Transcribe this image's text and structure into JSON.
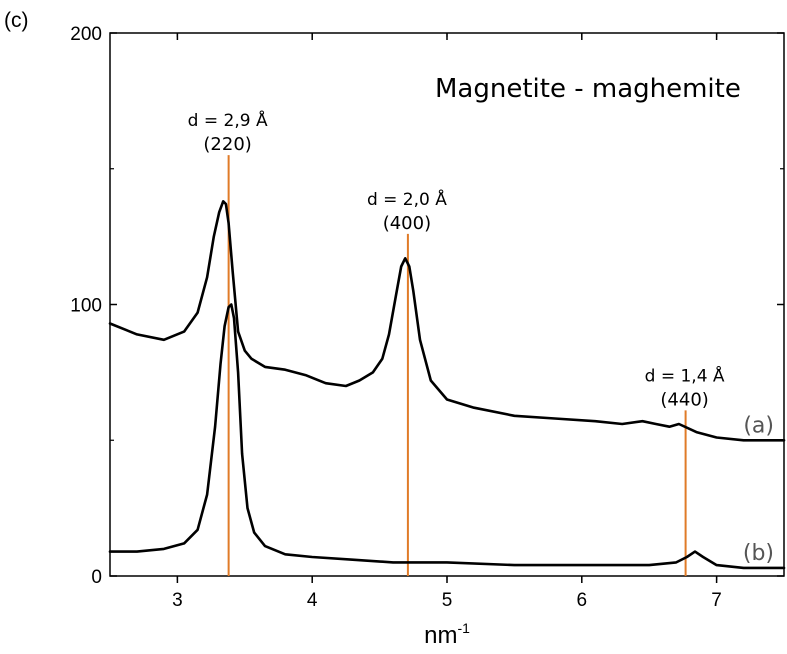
{
  "chart_data": {
    "type": "line",
    "panel_label": "(c)",
    "title": "Magnetite - maghemite",
    "xlabel": "nm",
    "xlabel_sup": "-1",
    "ylabel": "",
    "xlim": [
      2.5,
      7.5
    ],
    "ylim": [
      0,
      200
    ],
    "x_ticks": [
      3,
      4,
      5,
      6,
      7
    ],
    "x_tick_labels": [
      "3",
      "4",
      "5",
      "6",
      "7"
    ],
    "y_ticks": [
      0,
      100,
      200
    ],
    "y_tick_labels": [
      "0",
      "100",
      "200"
    ],
    "grid": false,
    "colors": {
      "curve": "#000000",
      "marker_line": "#e07b28"
    },
    "series": [
      {
        "name": "(a)",
        "x": [
          2.5,
          2.7,
          2.9,
          3.05,
          3.15,
          3.22,
          3.27,
          3.31,
          3.34,
          3.36,
          3.38,
          3.41,
          3.45,
          3.5,
          3.55,
          3.65,
          3.8,
          3.95,
          4.1,
          4.25,
          4.35,
          4.45,
          4.52,
          4.57,
          4.62,
          4.66,
          4.69,
          4.72,
          4.75,
          4.8,
          4.88,
          5.0,
          5.2,
          5.5,
          5.8,
          6.1,
          6.3,
          6.45,
          6.55,
          6.65,
          6.72,
          6.85,
          7.0,
          7.2,
          7.5
        ],
        "y": [
          93,
          89,
          87,
          90,
          97,
          110,
          125,
          134,
          138,
          137,
          130,
          112,
          90,
          83,
          80,
          77,
          76,
          74,
          71,
          70,
          72,
          75,
          80,
          89,
          103,
          114,
          117,
          114,
          105,
          87,
          72,
          65,
          62,
          59,
          58,
          57,
          56,
          57,
          56,
          55,
          56,
          53,
          51,
          50,
          50
        ]
      },
      {
        "name": "(b)",
        "x": [
          2.5,
          2.7,
          2.9,
          3.05,
          3.15,
          3.22,
          3.28,
          3.32,
          3.35,
          3.38,
          3.4,
          3.42,
          3.45,
          3.48,
          3.52,
          3.57,
          3.65,
          3.8,
          4.0,
          4.3,
          4.6,
          5.0,
          5.5,
          6.0,
          6.5,
          6.7,
          6.78,
          6.84,
          6.9,
          7.0,
          7.2,
          7.5
        ],
        "y": [
          9,
          9,
          10,
          12,
          17,
          30,
          55,
          78,
          92,
          99,
          100,
          95,
          75,
          45,
          25,
          16,
          11,
          8,
          7,
          6,
          5,
          5,
          4,
          4,
          4,
          5,
          7,
          9,
          7,
          4,
          3,
          3
        ]
      }
    ],
    "annotations": [
      {
        "x": 3.38,
        "line_top": 155,
        "line1": "d = 2,9 Å",
        "line2": "(220)"
      },
      {
        "x": 4.71,
        "line_top": 126,
        "line1": "d = 2,0 Å",
        "line2": "(400)"
      },
      {
        "x": 6.77,
        "line_top": 61,
        "line1": "d = 1,4 Å",
        "line2": "(440)"
      }
    ]
  }
}
